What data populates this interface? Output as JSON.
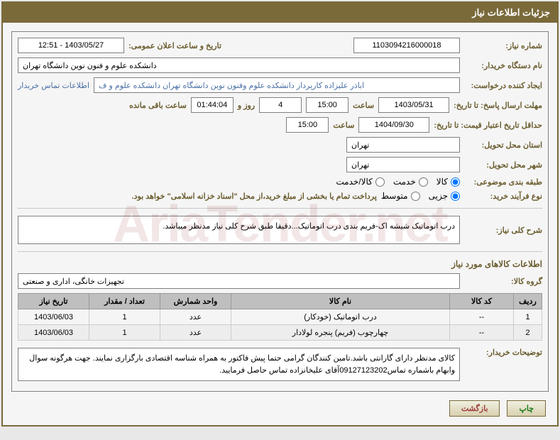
{
  "header": {
    "title": "جزئیات اطلاعات نیاز"
  },
  "form": {
    "need_number_label": "شماره نیاز:",
    "need_number": "1103094216000018",
    "announce_datetime_label": "تاریخ و ساعت اعلان عمومی:",
    "announce_datetime": "1403/05/27 - 12:51",
    "buyer_org_label": "نام دستگاه خریدار:",
    "buyer_org": "دانشکده علوم و فنون نوین دانشگاه تهران",
    "requester_label": "ایجاد کننده درخواست:",
    "requester": "اباذر علیزاده کارپرداز دانشکده علوم وفنون نوین دانشگاه تهران دانشکده علوم و ف",
    "buyer_contact_link": "اطلاعات تماس خریدار",
    "deadline_label": "مهلت ارسال پاسخ: تا تاریخ:",
    "deadline_date": "1403/05/31",
    "hour_label": "ساعت",
    "deadline_hour": "15:00",
    "days_label": "روز و",
    "days_remaining": "4",
    "time_remaining": "01:44:04",
    "remaining_label": "ساعت باقی مانده",
    "validity_label": "حداقل تاریخ اعتبار قیمت: تا تاریخ:",
    "validity_date": "1404/09/30",
    "validity_hour": "15:00",
    "province_label": "استان محل تحویل:",
    "province": "تهران",
    "city_label": "شهر محل تحویل:",
    "city": "تهران",
    "category_label": "طبقه بندی موضوعی:",
    "cat_goods": "کالا",
    "cat_service": "خدمت",
    "cat_both": "کالا/خدمت",
    "purchase_type_label": "نوع فرآیند خرید:",
    "pt_small": "جزیی",
    "pt_medium": "متوسط",
    "purchase_note": "پرداخت تمام یا بخشی از مبلغ خرید،از محل \"اسناد خزانه اسلامی\" خواهد بود.",
    "description_label": "شرح کلی نیاز:",
    "description": "درب اتوماتیک شیشه اک-فریم بندی درب اتوماتیک...دقیقا طبق شرح کلی نیاز مدنظر میباشد.",
    "goods_info_title": "اطلاعات کالاهای مورد نیاز",
    "group_label": "گروه کالا:",
    "group": "تجهیزات خانگی، اداری و صنعتی",
    "buyer_notes_label": "توضیحات خریدار:",
    "buyer_notes": "کالای مدنظر دارای گارانتی باشد.تامین کنندگان گرامی حتما پیش فاکتور به همراه شناسه اقتصادی بارگزاری نمایند. جهت هرگونه سوال وابهام باشماره تماس09127123202آقای علیخانزاده تماس حاصل فرمایید."
  },
  "table": {
    "headers": {
      "row": "ردیف",
      "code": "کد کالا",
      "name": "نام کالا",
      "unit": "واحد شمارش",
      "qty": "تعداد / مقدار",
      "date": "تاریخ نیاز"
    },
    "rows": [
      {
        "row": "1",
        "code": "--",
        "name": "درب اتوماتیک (خودکار)",
        "unit": "عدد",
        "qty": "1",
        "date": "1403/06/03"
      },
      {
        "row": "2",
        "code": "--",
        "name": "چهارچوب (فریم) پنجره لولادار",
        "unit": "عدد",
        "qty": "1",
        "date": "1403/06/03"
      }
    ]
  },
  "buttons": {
    "print": "چاپ",
    "back": "بازگشت"
  },
  "watermark": "AriaTender.net"
}
